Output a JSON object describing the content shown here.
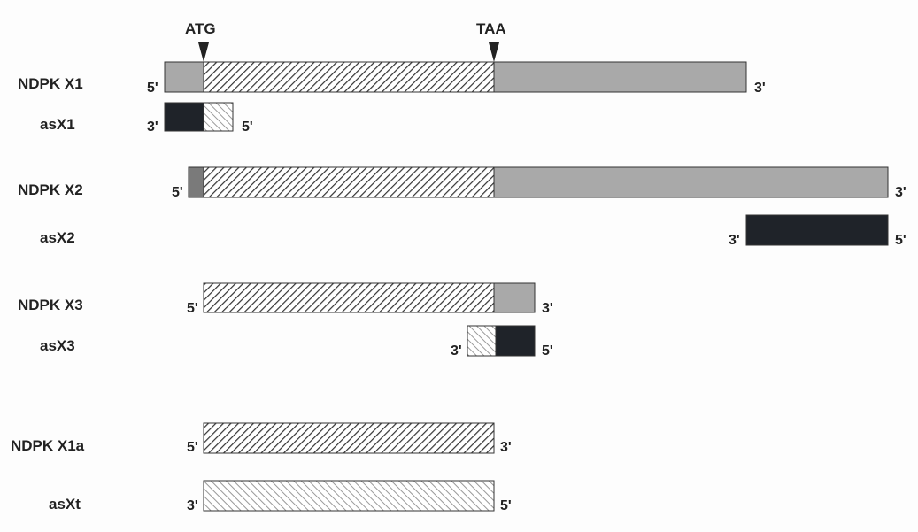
{
  "markers": {
    "start": "ATG",
    "stop": "TAA"
  },
  "colors": {
    "utr": "#a9a9a9",
    "utr_dark": "#7a7a7a",
    "antisense": "#1f2329",
    "outline": "#333333"
  },
  "rows": [
    {
      "label": "NDPK X1",
      "left_end": "5'",
      "right_end": "3'"
    },
    {
      "label": "asX1",
      "left_end": "3'",
      "right_end": "5'"
    },
    {
      "label": "NDPK X2",
      "left_end": "5'",
      "right_end": "3'"
    },
    {
      "label": "asX2",
      "left_end": "3'",
      "right_end": "5'"
    },
    {
      "label": "NDPK X3",
      "left_end": "5'",
      "right_end": "3'"
    },
    {
      "label": "asX3",
      "left_end": "3'",
      "right_end": "5'"
    },
    {
      "label": "NDPK X1a",
      "left_end": "5'",
      "right_end": "3'"
    },
    {
      "label": "asXt",
      "left_end": "3'",
      "right_end": "5'"
    }
  ]
}
